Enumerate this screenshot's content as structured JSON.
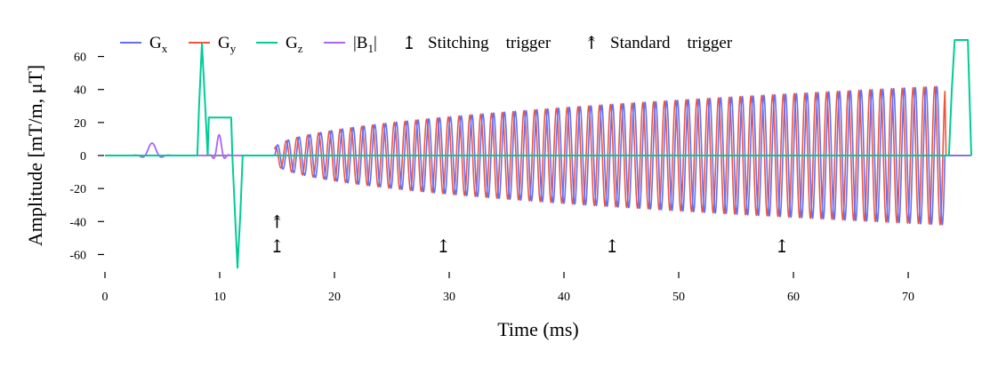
{
  "chart_data": {
    "type": "line",
    "xlabel": "Time (ms)",
    "ylabel": "Amplitude [mT/m, μT]",
    "xlim": [
      0,
      75.5
    ],
    "ylim": [
      -70,
      70
    ],
    "xticks": [
      0,
      10,
      20,
      30,
      40,
      50,
      60,
      70
    ],
    "yticks": [
      -60,
      -40,
      -20,
      0,
      20,
      40,
      60
    ],
    "grid": false,
    "legend_position": "top",
    "colors": {
      "Gx": "#636efa",
      "Gy": "#ef553b",
      "Gz": "#00cc96",
      "B1": "#ab63fa",
      "zero_line": "#444444"
    },
    "legend": [
      {
        "key": "Gx",
        "main": "G",
        "sub": "x"
      },
      {
        "key": "Gy",
        "main": "G",
        "sub": "y"
      },
      {
        "key": "Gz",
        "main": "G",
        "sub": "z"
      },
      {
        "key": "B1",
        "main": "|B",
        "sub": "1",
        "tail": "|"
      },
      {
        "key": "stitching",
        "symbol": "↥",
        "label": "Stitching  trigger"
      },
      {
        "key": "standard",
        "symbol": "↟",
        "label": "Standard  trigger"
      }
    ],
    "series": {
      "Gz": {
        "points": [
          [
            0,
            0
          ],
          [
            8.05,
            0
          ],
          [
            8.2,
            30
          ],
          [
            8.45,
            68
          ],
          [
            8.75,
            28
          ],
          [
            8.95,
            0
          ],
          [
            9.05,
            23
          ],
          [
            11.0,
            23
          ],
          [
            11.1,
            0
          ],
          [
            11.55,
            -68
          ],
          [
            11.8,
            -35
          ],
          [
            12.0,
            0
          ],
          [
            73.55,
            0
          ],
          [
            73.8,
            40
          ],
          [
            74.05,
            70
          ],
          [
            75.2,
            70
          ],
          [
            75.5,
            0
          ]
        ]
      },
      "B1_pulses": [
        {
          "center": 4.1,
          "amplitude": 7.5,
          "width": 0.6
        },
        {
          "center": 9.95,
          "amplitude": 12.5,
          "width": 0.35
        }
      ],
      "spiral": {
        "t_start": 14.8,
        "t_end": 73.2,
        "amp_start": 4,
        "amp_end": 42,
        "cycles_Gx": 62,
        "phase_offset_Gy": 1.2
      }
    },
    "markers": {
      "standard_trigger": [
        {
          "x": 15.0,
          "y": -40
        }
      ],
      "stitching_trigger": [
        {
          "x": 15.0,
          "y": -55
        },
        {
          "x": 29.5,
          "y": -55
        },
        {
          "x": 44.2,
          "y": -55
        },
        {
          "x": 59.0,
          "y": -55
        }
      ]
    }
  }
}
